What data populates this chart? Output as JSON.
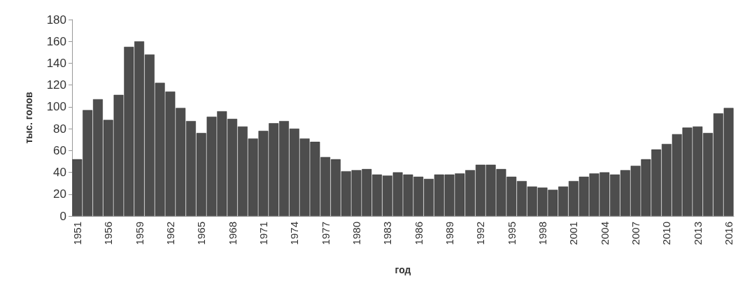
{
  "chart_data": {
    "type": "bar",
    "xlabel": "год",
    "ylabel": "тыс. голов",
    "categories": [
      "1951",
      null,
      null,
      "1956",
      null,
      null,
      "1959",
      null,
      null,
      "1962",
      null,
      null,
      "1965",
      null,
      null,
      "1968",
      null,
      null,
      "1971",
      null,
      null,
      "1974",
      null,
      null,
      "1977",
      null,
      null,
      "1980",
      null,
      null,
      "1983",
      null,
      null,
      "1986",
      null,
      null,
      "1989",
      null,
      null,
      "1992",
      null,
      null,
      "1995",
      null,
      null,
      "1998",
      null,
      null,
      "2001",
      null,
      null,
      "2004",
      null,
      null,
      "2007",
      null,
      null,
      "2010",
      null,
      null,
      "2013",
      null,
      null,
      "2016"
    ],
    "values": [
      52,
      97,
      107,
      88,
      111,
      155,
      160,
      148,
      122,
      114,
      99,
      87,
      76,
      91,
      96,
      89,
      82,
      71,
      78,
      85,
      87,
      80,
      71,
      68,
      54,
      52,
      41,
      42,
      43,
      38,
      37,
      40,
      38,
      36,
      34,
      38,
      38,
      39,
      42,
      47,
      47,
      43,
      36,
      32,
      27,
      26,
      24,
      27,
      32,
      36,
      39,
      40,
      38,
      42,
      46,
      52,
      61,
      66,
      75,
      81,
      82,
      76,
      94,
      99
    ],
    "color": "#4d4d4d",
    "ylim": [
      0,
      180
    ],
    "yticks": [
      0,
      20,
      40,
      60,
      80,
      100,
      120,
      140,
      160,
      180
    ],
    "grid": false
  }
}
